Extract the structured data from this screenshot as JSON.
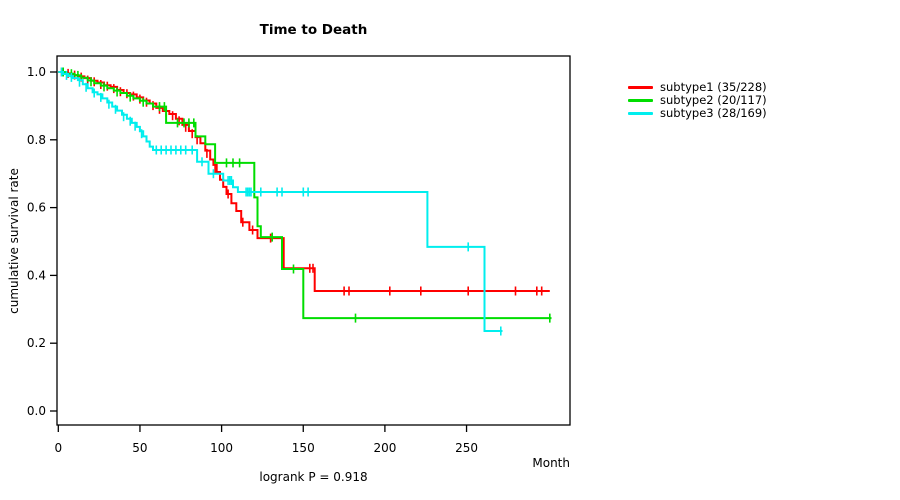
{
  "title": "Time to Death",
  "subtitle": "logrank P = 0.918",
  "x_axis": {
    "label": "Month",
    "ticks": [
      0,
      50,
      100,
      150,
      200,
      250
    ],
    "tick_labels": [
      "0",
      "50",
      "100",
      "150",
      "200",
      "250"
    ]
  },
  "y_axis": {
    "label": "cumulative survival rate",
    "ticks": [
      0.0,
      0.2,
      0.4,
      0.6,
      0.8,
      1.0
    ],
    "tick_labels": [
      "0.0",
      "0.2",
      "0.4",
      "0.6",
      "0.8",
      "1.0"
    ]
  },
  "chart_data": {
    "type": "line",
    "subtype": "kaplan-meier-step-curves",
    "title": "Time to Death",
    "xlabel": "Month",
    "ylabel": "cumulative survival rate",
    "annotation": "logrank P = 0.918",
    "xlim": [
      0,
      313
    ],
    "ylim": [
      0,
      1
    ],
    "grid": false,
    "legend_position": "right-outside",
    "series": [
      {
        "name": "subtype1 (35/228)",
        "events": 35,
        "n": 228,
        "color": "#ff0000",
        "end_month": 301,
        "steps": [
          [
            0,
            1.0
          ],
          [
            4,
            0.996
          ],
          [
            8,
            0.991
          ],
          [
            12,
            0.987
          ],
          [
            16,
            0.982
          ],
          [
            20,
            0.974
          ],
          [
            24,
            0.969
          ],
          [
            28,
            0.961
          ],
          [
            32,
            0.956
          ],
          [
            36,
            0.947
          ],
          [
            40,
            0.938
          ],
          [
            44,
            0.934
          ],
          [
            48,
            0.925
          ],
          [
            52,
            0.916
          ],
          [
            56,
            0.907
          ],
          [
            60,
            0.894
          ],
          [
            64,
            0.885
          ],
          [
            68,
            0.876
          ],
          [
            72,
            0.862
          ],
          [
            76,
            0.844
          ],
          [
            80,
            0.826
          ],
          [
            84,
            0.808
          ],
          [
            87,
            0.79
          ],
          [
            90,
            0.768
          ],
          [
            93,
            0.742
          ],
          [
            95,
            0.726
          ],
          [
            97,
            0.705
          ],
          [
            99,
            0.682
          ],
          [
            101,
            0.661
          ],
          [
            103,
            0.64
          ],
          [
            106,
            0.613
          ],
          [
            109,
            0.59
          ],
          [
            112,
            0.557
          ],
          [
            117,
            0.534
          ],
          [
            122,
            0.51
          ],
          [
            138,
            0.421
          ],
          [
            157,
            0.354
          ]
        ],
        "censor_marks": [
          [
            2,
            1.0
          ],
          [
            6,
            0.996
          ],
          [
            10,
            0.991
          ],
          [
            14,
            0.985
          ],
          [
            18,
            0.976
          ],
          [
            22,
            0.971
          ],
          [
            26,
            0.963
          ],
          [
            30,
            0.958
          ],
          [
            34,
            0.951
          ],
          [
            38,
            0.942
          ],
          [
            42,
            0.936
          ],
          [
            46,
            0.929
          ],
          [
            50,
            0.92
          ],
          [
            54,
            0.911
          ],
          [
            58,
            0.901
          ],
          [
            62,
            0.89
          ],
          [
            66,
            0.881
          ],
          [
            70,
            0.871
          ],
          [
            74,
            0.856
          ],
          [
            78,
            0.837
          ],
          [
            82,
            0.818
          ],
          [
            85,
            0.8
          ],
          [
            91,
            0.76
          ],
          [
            96,
            0.715
          ],
          [
            104,
            0.64
          ],
          [
            113,
            0.557
          ],
          [
            119,
            0.534
          ],
          [
            130,
            0.51
          ],
          [
            154,
            0.421
          ],
          [
            156,
            0.421
          ],
          [
            175,
            0.354
          ],
          [
            178,
            0.354
          ],
          [
            203,
            0.354
          ],
          [
            222,
            0.354
          ],
          [
            251,
            0.354
          ],
          [
            280,
            0.354
          ],
          [
            293,
            0.354
          ],
          [
            296,
            0.354
          ]
        ]
      },
      {
        "name": "subtype2 (20/117)",
        "events": 20,
        "n": 117,
        "color": "#00dd00",
        "end_month": 302,
        "steps": [
          [
            0,
            1.0
          ],
          [
            5,
            0.995
          ],
          [
            10,
            0.99
          ],
          [
            14,
            0.983
          ],
          [
            18,
            0.975
          ],
          [
            22,
            0.967
          ],
          [
            26,
            0.96
          ],
          [
            30,
            0.952
          ],
          [
            34,
            0.945
          ],
          [
            38,
            0.938
          ],
          [
            42,
            0.93
          ],
          [
            46,
            0.922
          ],
          [
            50,
            0.915
          ],
          [
            54,
            0.907
          ],
          [
            58,
            0.898
          ],
          [
            66,
            0.85
          ],
          [
            84,
            0.81
          ],
          [
            90,
            0.787
          ],
          [
            96,
            0.732
          ],
          [
            120,
            0.63
          ],
          [
            122,
            0.545
          ],
          [
            124,
            0.513
          ],
          [
            137,
            0.419
          ],
          [
            150,
            0.274
          ]
        ],
        "censor_marks": [
          [
            3,
            1.0
          ],
          [
            8,
            0.995
          ],
          [
            12,
            0.99
          ],
          [
            20,
            0.971
          ],
          [
            28,
            0.956
          ],
          [
            36,
            0.941
          ],
          [
            44,
            0.926
          ],
          [
            52,
            0.911
          ],
          [
            62,
            0.898
          ],
          [
            65,
            0.898
          ],
          [
            73,
            0.85
          ],
          [
            77,
            0.85
          ],
          [
            80,
            0.85
          ],
          [
            83,
            0.85
          ],
          [
            103,
            0.732
          ],
          [
            107,
            0.732
          ],
          [
            111,
            0.732
          ],
          [
            131,
            0.513
          ],
          [
            144,
            0.419
          ],
          [
            182,
            0.274
          ],
          [
            301,
            0.274
          ]
        ]
      },
      {
        "name": "subtype3 (28/169)",
        "events": 28,
        "n": 169,
        "color": "#00eeee",
        "end_month": 272,
        "steps": [
          [
            0,
            1.0
          ],
          [
            3,
            0.994
          ],
          [
            6,
            0.988
          ],
          [
            9,
            0.982
          ],
          [
            12,
            0.976
          ],
          [
            15,
            0.964
          ],
          [
            18,
            0.952
          ],
          [
            21,
            0.94
          ],
          [
            24,
            0.934
          ],
          [
            27,
            0.922
          ],
          [
            30,
            0.91
          ],
          [
            33,
            0.898
          ],
          [
            36,
            0.886
          ],
          [
            39,
            0.874
          ],
          [
            42,
            0.862
          ],
          [
            45,
            0.85
          ],
          [
            48,
            0.838
          ],
          [
            50,
            0.825
          ],
          [
            52,
            0.81
          ],
          [
            54,
            0.795
          ],
          [
            56,
            0.78
          ],
          [
            58,
            0.77
          ],
          [
            85,
            0.735
          ],
          [
            92,
            0.7
          ],
          [
            101,
            0.68
          ],
          [
            107,
            0.66
          ],
          [
            110,
            0.646
          ],
          [
            226,
            0.484
          ],
          [
            261,
            0.236
          ]
        ],
        "censor_marks": [
          [
            2,
            1.0
          ],
          [
            5,
            0.99
          ],
          [
            8,
            0.984
          ],
          [
            13,
            0.97
          ],
          [
            17,
            0.955
          ],
          [
            22,
            0.938
          ],
          [
            26,
            0.925
          ],
          [
            31,
            0.905
          ],
          [
            35,
            0.89
          ],
          [
            40,
            0.868
          ],
          [
            44,
            0.855
          ],
          [
            47,
            0.84
          ],
          [
            51,
            0.818
          ],
          [
            60,
            0.77
          ],
          [
            63,
            0.77
          ],
          [
            66,
            0.77
          ],
          [
            69,
            0.77
          ],
          [
            72,
            0.77
          ],
          [
            75,
            0.77
          ],
          [
            78,
            0.77
          ],
          [
            82,
            0.77
          ],
          [
            88,
            0.735
          ],
          [
            95,
            0.7
          ],
          [
            104,
            0.68
          ],
          [
            105,
            0.68
          ],
          [
            106,
            0.68
          ],
          [
            115,
            0.646
          ],
          [
            116,
            0.646
          ],
          [
            117,
            0.646
          ],
          [
            118,
            0.646
          ],
          [
            124,
            0.646
          ],
          [
            134,
            0.646
          ],
          [
            137,
            0.646
          ],
          [
            150,
            0.646
          ],
          [
            153,
            0.646
          ],
          [
            251,
            0.484
          ],
          [
            271,
            0.236
          ]
        ]
      }
    ]
  }
}
